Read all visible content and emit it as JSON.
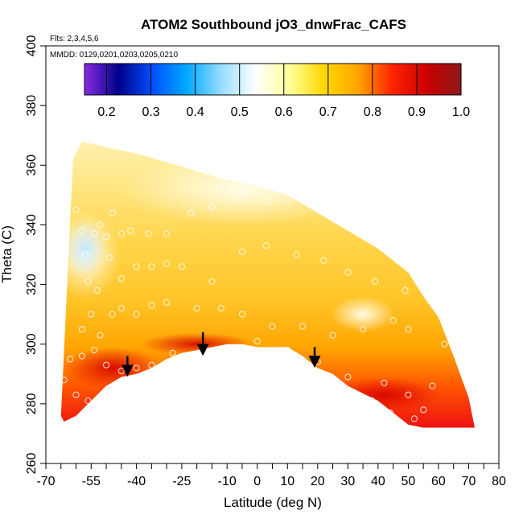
{
  "chart_data": {
    "type": "heatmap",
    "title": "ATOM2 Southbound jO3_dnwFrac_CAFS",
    "subtitle_flights": "Flts: 2,3,4,5,6",
    "subtitle_dates": "MMDD: 0129,0201,0203,0205,0210",
    "xlabel": "Latitude (deg N)",
    "ylabel": "Theta (C)",
    "xlim": [
      -70,
      80
    ],
    "ylim": [
      260,
      400
    ],
    "x_tick_labels": [
      "-70",
      "-55",
      "-40",
      "-25",
      "-10",
      "0",
      "10",
      "20",
      "30",
      "40",
      "50",
      "60",
      "70",
      "80"
    ],
    "x_tick_values": [
      -70,
      -55,
      -40,
      -25,
      -10,
      0,
      10,
      20,
      30,
      40,
      50,
      60,
      70,
      80
    ],
    "x_minor_ticks": [
      -65,
      -60,
      -50,
      -45,
      -35,
      -30,
      -20,
      -15,
      -5,
      5,
      15,
      25,
      35,
      45,
      55,
      65,
      75
    ],
    "y_tick_labels": [
      "260",
      "280",
      "300",
      "320",
      "340",
      "360",
      "380",
      "400"
    ],
    "y_tick_values": [
      260,
      280,
      300,
      320,
      340,
      360,
      380,
      400
    ],
    "colorbar": {
      "range": [
        0.15,
        1.0
      ],
      "tick_labels": [
        "0.2",
        "0.3",
        "0.4",
        "0.5",
        "0.6",
        "0.7",
        "0.8",
        "0.9",
        "1.0"
      ],
      "tick_values": [
        0.2,
        0.3,
        0.4,
        0.5,
        0.6,
        0.7,
        0.8,
        0.9,
        1.0
      ],
      "colors": [
        "#8A2BE2",
        "#00008B",
        "#0050FF",
        "#00AAFF",
        "#99DDFF",
        "#FFFFFF",
        "#FFFF99",
        "#FFD700",
        "#FFA500",
        "#FF2200",
        "#CC0000",
        "#8B1A1A"
      ]
    },
    "arrows": [
      {
        "lat": -43,
        "theta_from": 296,
        "theta_to": 290
      },
      {
        "lat": -18,
        "theta_from": 304,
        "theta_to": 297
      },
      {
        "lat": 19,
        "theta_from": 299,
        "theta_to": 293
      }
    ],
    "upper_boundary": [
      [
        -61,
        362
      ],
      [
        -58,
        368
      ],
      [
        -50,
        366
      ],
      [
        -40,
        364
      ],
      [
        -30,
        361
      ],
      [
        -20,
        358
      ],
      [
        -10,
        355
      ],
      [
        0,
        353
      ],
      [
        10,
        350
      ],
      [
        20,
        344
      ],
      [
        30,
        338
      ],
      [
        40,
        332
      ],
      [
        50,
        324
      ],
      [
        55,
        316
      ],
      [
        60,
        309
      ],
      [
        65,
        296
      ],
      [
        70,
        282
      ],
      [
        72,
        272
      ]
    ],
    "lower_boundary": [
      [
        72,
        272
      ],
      [
        65,
        272
      ],
      [
        55,
        272
      ],
      [
        50,
        273
      ],
      [
        40,
        281
      ],
      [
        30,
        286
      ],
      [
        25,
        290
      ],
      [
        20,
        292
      ],
      [
        15,
        296
      ],
      [
        10,
        299
      ],
      [
        5,
        299
      ],
      [
        0,
        299
      ],
      [
        -5,
        300
      ],
      [
        -10,
        300
      ],
      [
        -15,
        299
      ],
      [
        -20,
        298
      ],
      [
        -25,
        297
      ],
      [
        -30,
        295
      ],
      [
        -35,
        292
      ],
      [
        -40,
        290
      ],
      [
        -45,
        289
      ],
      [
        -50,
        286
      ],
      [
        -55,
        281
      ],
      [
        -60,
        276
      ],
      [
        -64,
        274
      ],
      [
        -65,
        276
      ]
    ],
    "observations": [
      [
        -60,
        345
      ],
      [
        -58,
        338
      ],
      [
        -57,
        330
      ],
      [
        -54,
        337
      ],
      [
        -52,
        340
      ],
      [
        -50,
        336
      ],
      [
        -48,
        344
      ],
      [
        -45,
        337
      ],
      [
        -42,
        338
      ],
      [
        -36,
        337
      ],
      [
        -30,
        337
      ],
      [
        -22,
        344
      ],
      [
        -15,
        346
      ],
      [
        -5,
        350
      ],
      [
        4,
        348
      ],
      [
        10,
        349
      ],
      [
        20,
        346
      ],
      [
        32,
        339
      ],
      [
        -56,
        321
      ],
      [
        -53,
        318
      ],
      [
        -49,
        329
      ],
      [
        -45,
        322
      ],
      [
        -40,
        326
      ],
      [
        -35,
        326
      ],
      [
        -30,
        327
      ],
      [
        -25,
        326
      ],
      [
        -15,
        321
      ],
      [
        -5,
        331
      ],
      [
        3,
        333
      ],
      [
        13,
        330
      ],
      [
        22,
        328
      ],
      [
        30,
        324
      ],
      [
        39,
        321
      ],
      [
        49,
        318
      ],
      [
        -58,
        305
      ],
      [
        -55,
        310
      ],
      [
        -52,
        303
      ],
      [
        -48,
        310
      ],
      [
        -45,
        312
      ],
      [
        -40,
        310
      ],
      [
        -35,
        313
      ],
      [
        -30,
        314
      ],
      [
        -20,
        312
      ],
      [
        -12,
        312
      ],
      [
        -5,
        310
      ],
      [
        5,
        306
      ],
      [
        15,
        306
      ],
      [
        25,
        303
      ],
      [
        35,
        305
      ],
      [
        45,
        308
      ],
      [
        50,
        305
      ],
      [
        -62,
        295
      ],
      [
        -58,
        296
      ],
      [
        -54,
        298
      ],
      [
        -50,
        293
      ],
      [
        -45,
        291
      ],
      [
        -40,
        292
      ],
      [
        -35,
        293
      ],
      [
        -28,
        297
      ],
      [
        -20,
        296
      ],
      [
        -10,
        298
      ],
      [
        0,
        301
      ],
      [
        10,
        298
      ],
      [
        20,
        294
      ],
      [
        30,
        289
      ],
      [
        42,
        287
      ],
      [
        50,
        283
      ],
      [
        55,
        278
      ],
      [
        -64,
        288
      ],
      [
        -60,
        283
      ],
      [
        -56,
        281
      ],
      [
        -52,
        280
      ],
      [
        38,
        281
      ],
      [
        44,
        277
      ],
      [
        52,
        275
      ],
      [
        58,
        286
      ],
      [
        62,
        300
      ],
      [
        64,
        305
      ]
    ]
  }
}
